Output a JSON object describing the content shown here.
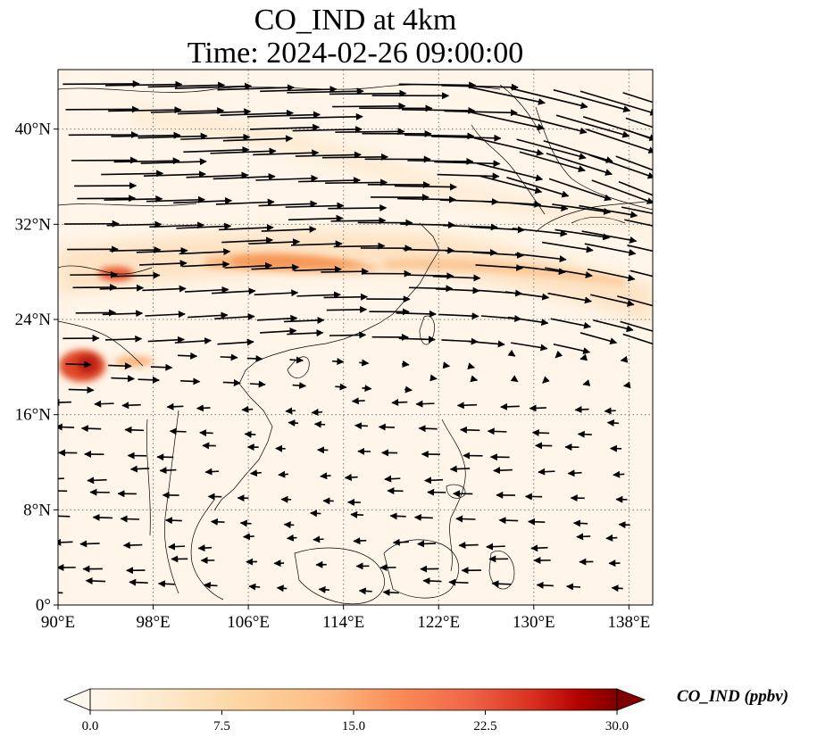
{
  "title": {
    "line1": "CO_IND at 4km",
    "line2": "Time: 2024-02-26 09:00:00"
  },
  "map": {
    "lon_range": [
      90,
      140
    ],
    "lat_range": [
      0,
      45
    ],
    "x_ticks": [
      "90°E",
      "98°E",
      "106°E",
      "114°E",
      "122°E",
      "130°E",
      "138°E"
    ],
    "x_tick_values": [
      90,
      98,
      106,
      114,
      122,
      130,
      138
    ],
    "y_ticks": [
      "0°",
      "8°N",
      "16°N",
      "24°N",
      "32°N",
      "40°N"
    ],
    "y_tick_values": [
      0,
      8,
      16,
      24,
      32,
      40
    ],
    "gridlines": "dotted",
    "field_variable": "CO_IND",
    "overlay": "wind vectors",
    "colors": {
      "background": "#fff5e8",
      "low": "#fde3c4",
      "mid": "#f9a35a",
      "high": "#d7301f",
      "max": "#7f0000",
      "coast": "#000000"
    }
  },
  "colorbar": {
    "label": "CO_IND (ppbv)",
    "ticks": [
      "0.0",
      "7.5",
      "15.0",
      "22.5",
      "30.0"
    ],
    "tick_values": [
      0,
      7.5,
      15,
      22.5,
      30
    ],
    "range": [
      0,
      30
    ],
    "colormap": "OrRd",
    "extend": "both"
  }
}
